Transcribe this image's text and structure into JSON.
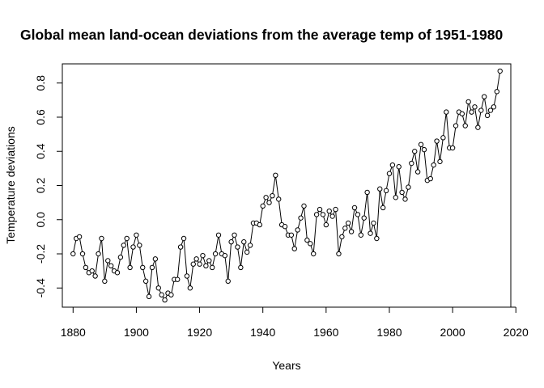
{
  "chart_data": {
    "type": "line",
    "title": "Global mean land-ocean deviations from the average temp of 1951-1980",
    "xlabel": "Years",
    "ylabel": "Temperature deviations",
    "xlim": [
      1876.6,
      2018.4
    ],
    "ylim": [
      -0.5122,
      0.9122
    ],
    "x_ticks": [
      1880,
      1900,
      1920,
      1940,
      1960,
      1980,
      2000,
      2020
    ],
    "y_ticks": [
      -0.4,
      -0.2,
      0.0,
      0.2,
      0.4,
      0.6,
      0.8
    ],
    "y_tick_labels": [
      "-0.4",
      "-0.2",
      "0.0",
      "0.2",
      "0.4",
      "0.6",
      "0.8"
    ],
    "grid": false,
    "legend": "none",
    "marker": "open-circle",
    "series": [
      {
        "x": [
          1880,
          1881,
          1882,
          1883,
          1884,
          1885,
          1886,
          1887,
          1888,
          1889,
          1890,
          1891,
          1892,
          1893,
          1894,
          1895,
          1896,
          1897,
          1898,
          1899,
          1900,
          1901,
          1902,
          1903,
          1904,
          1905,
          1906,
          1907,
          1908,
          1909,
          1910,
          1911,
          1912,
          1913,
          1914,
          1915,
          1916,
          1917,
          1918,
          1919,
          1920,
          1921,
          1922,
          1923,
          1924,
          1925,
          1926,
          1927,
          1928,
          1929,
          1930,
          1931,
          1932,
          1933,
          1934,
          1935,
          1936,
          1937,
          1938,
          1939,
          1940,
          1941,
          1942,
          1943,
          1944,
          1945,
          1946,
          1947,
          1948,
          1949,
          1950,
          1951,
          1952,
          1953,
          1954,
          1955,
          1956,
          1957,
          1958,
          1959,
          1960,
          1961,
          1962,
          1963,
          1964,
          1965,
          1966,
          1967,
          1968,
          1969,
          1970,
          1971,
          1972,
          1973,
          1974,
          1975,
          1976,
          1977,
          1978,
          1979,
          1980,
          1981,
          1982,
          1983,
          1984,
          1985,
          1986,
          1987,
          1988,
          1989,
          1990,
          1991,
          1992,
          1993,
          1994,
          1995,
          1996,
          1997,
          1998,
          1999,
          2000,
          2001,
          2002,
          2003,
          2004,
          2005,
          2006,
          2007,
          2008,
          2009,
          2010,
          2011,
          2012,
          2013,
          2014,
          2015
        ],
        "values": [
          -0.2,
          -0.11,
          -0.1,
          -0.2,
          -0.28,
          -0.31,
          -0.3,
          -0.33,
          -0.2,
          -0.11,
          -0.36,
          -0.24,
          -0.27,
          -0.3,
          -0.31,
          -0.22,
          -0.15,
          -0.11,
          -0.28,
          -0.16,
          -0.09,
          -0.15,
          -0.28,
          -0.36,
          -0.45,
          -0.28,
          -0.23,
          -0.4,
          -0.44,
          -0.47,
          -0.43,
          -0.44,
          -0.35,
          -0.35,
          -0.16,
          -0.11,
          -0.33,
          -0.4,
          -0.26,
          -0.23,
          -0.26,
          -0.21,
          -0.27,
          -0.24,
          -0.28,
          -0.2,
          -0.09,
          -0.2,
          -0.21,
          -0.36,
          -0.13,
          -0.09,
          -0.16,
          -0.28,
          -0.13,
          -0.19,
          -0.15,
          -0.02,
          -0.02,
          -0.03,
          0.08,
          0.13,
          0.1,
          0.14,
          0.26,
          0.12,
          -0.03,
          -0.04,
          -0.09,
          -0.09,
          -0.17,
          -0.06,
          0.01,
          0.08,
          -0.12,
          -0.14,
          -0.2,
          0.03,
          0.06,
          0.03,
          -0.03,
          0.05,
          0.02,
          0.06,
          -0.2,
          -0.1,
          -0.05,
          -0.02,
          -0.07,
          0.07,
          0.03,
          -0.09,
          0.01,
          0.16,
          -0.08,
          -0.02,
          -0.11,
          0.18,
          0.07,
          0.17,
          0.27,
          0.32,
          0.13,
          0.31,
          0.16,
          0.12,
          0.19,
          0.33,
          0.4,
          0.28,
          0.44,
          0.41,
          0.23,
          0.24,
          0.32,
          0.46,
          0.34,
          0.48,
          0.63,
          0.42,
          0.42,
          0.55,
          0.63,
          0.62,
          0.55,
          0.69,
          0.63,
          0.66,
          0.54,
          0.64,
          0.72,
          0.61,
          0.64,
          0.66,
          0.75,
          0.87
        ]
      }
    ]
  }
}
